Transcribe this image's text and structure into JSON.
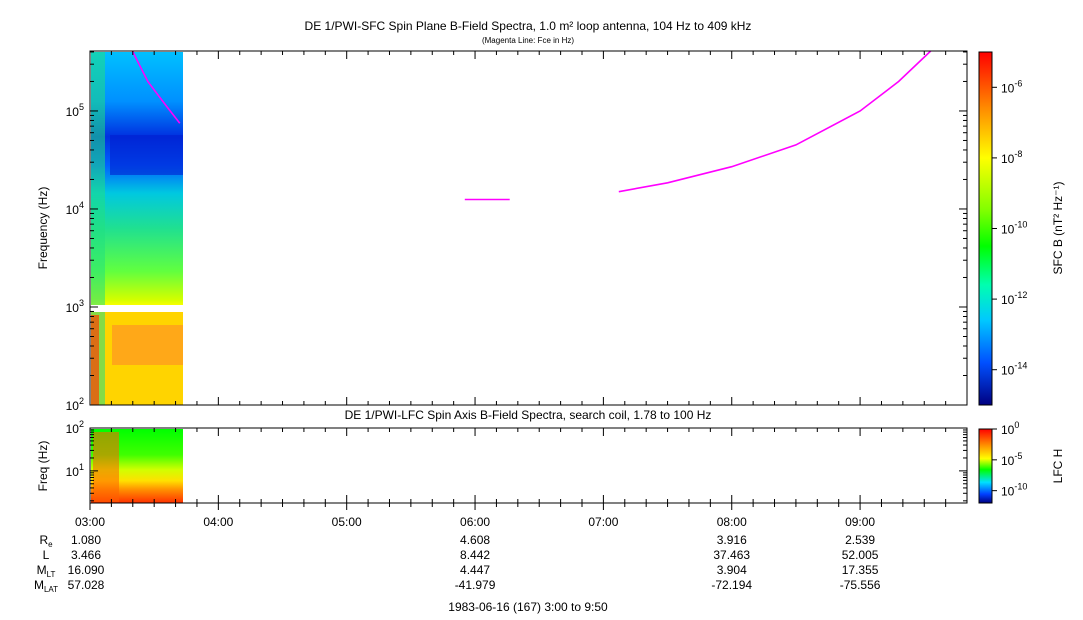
{
  "chart_data": [
    {
      "type": "heatmap",
      "title": "DE 1/PWI-SFC  Spin Plane B-Field Spectra, 1.0 m² loop antenna, 104 Hz to 409 kHz",
      "subtitle": "(Magenta Line: Fce in Hz)",
      "ylabel": "Frequency (Hz)",
      "yscale": "log",
      "ylim": [
        100,
        409000
      ],
      "yticks": [
        {
          "value": 100,
          "base": "10",
          "exp": "2"
        },
        {
          "value": 1000,
          "base": "10",
          "exp": "3"
        },
        {
          "value": 10000,
          "base": "10",
          "exp": "4"
        },
        {
          "value": 100000,
          "base": "10",
          "exp": "5"
        }
      ],
      "xlim_hours": [
        3.0,
        9.833
      ],
      "data_coverage_hours": [
        3.0,
        3.7
      ],
      "colorbar": {
        "label": "SFC B (nT² Hz⁻¹)",
        "scale": "log",
        "range": [
          1e-15,
          1e-05
        ],
        "ticks": [
          {
            "value": 1e-06,
            "base": "10",
            "exp": "-6"
          },
          {
            "value": 1e-08,
            "base": "10",
            "exp": "-8"
          },
          {
            "value": 1e-10,
            "base": "10",
            "exp": "-10"
          },
          {
            "value": 1e-12,
            "base": "10",
            "exp": "-12"
          },
          {
            "value": 1e-14,
            "base": "10",
            "exp": "-14"
          }
        ]
      },
      "fce_line": {
        "color": "#ff00ff",
        "segments": [
          {
            "x": [
              3.33,
              3.45,
              3.6,
              3.7
            ],
            "y": [
              409000,
              200000,
              110000,
              75000
            ]
          },
          {
            "x": [
              5.92,
              6.27
            ],
            "y": [
              12500,
              12500
            ]
          },
          {
            "x": [
              7.12,
              7.5,
              8.0,
              8.5,
              9.0,
              9.3,
              9.55
            ],
            "y": [
              15000,
              18500,
              27000,
              45000,
              100000,
              200000,
              409000
            ]
          }
        ]
      }
    },
    {
      "type": "heatmap",
      "title": "DE 1/PWI-LFC  Spin Axis B-Field Spectra, search coil, 1.78 to 100 Hz",
      "ylabel": "Freq (Hz)",
      "yscale": "log",
      "ylim": [
        1.78,
        100
      ],
      "yticks": [
        {
          "value": 10,
          "base": "10",
          "exp": "1"
        },
        {
          "value": 100,
          "base": "10",
          "exp": "2"
        }
      ],
      "data_coverage_hours": [
        3.0,
        3.7
      ],
      "colorbar": {
        "label": "LFC H",
        "scale": "log",
        "range": [
          1e-12,
          1
        ],
        "ticks": [
          {
            "value": 1,
            "base": "10",
            "exp": "0"
          },
          {
            "value": 1e-05,
            "base": "10",
            "exp": "-5"
          },
          {
            "value": 1e-10,
            "base": "10",
            "exp": "-10"
          }
        ]
      }
    }
  ],
  "time_axis": {
    "ticks": [
      {
        "hour": 3,
        "label": "03:00"
      },
      {
        "hour": 4,
        "label": "04:00"
      },
      {
        "hour": 5,
        "label": "05:00"
      },
      {
        "hour": 6,
        "label": "06:00"
      },
      {
        "hour": 7,
        "label": "07:00"
      },
      {
        "hour": 8,
        "label": "08:00"
      },
      {
        "hour": 9,
        "label": "09:00"
      }
    ]
  },
  "ephemeris": {
    "rows": [
      {
        "label": "R",
        "sub": "e",
        "values": [
          {
            "hour": 3,
            "text": "1.080"
          },
          {
            "hour": 6,
            "text": "4.608"
          },
          {
            "hour": 8,
            "text": "3.916"
          },
          {
            "hour": 9,
            "text": "2.539"
          }
        ]
      },
      {
        "label": "L",
        "sub": "",
        "values": [
          {
            "hour": 3,
            "text": "3.466"
          },
          {
            "hour": 6,
            "text": "8.442"
          },
          {
            "hour": 8,
            "text": "37.463"
          },
          {
            "hour": 9,
            "text": "52.005"
          }
        ]
      },
      {
        "label": "M",
        "sub": "LT",
        "values": [
          {
            "hour": 3,
            "text": "16.090"
          },
          {
            "hour": 6,
            "text": "4.447"
          },
          {
            "hour": 8,
            "text": "3.904"
          },
          {
            "hour": 9,
            "text": "17.355"
          }
        ]
      },
      {
        "label": "M",
        "sub": "LAT",
        "values": [
          {
            "hour": 3,
            "text": "57.028"
          },
          {
            "hour": 6,
            "text": "-41.979"
          },
          {
            "hour": 8,
            "text": "-72.194"
          },
          {
            "hour": 9,
            "text": "-75.556"
          }
        ]
      }
    ]
  },
  "footer": "1983-06-16 (167) 3:00 to 9:50"
}
